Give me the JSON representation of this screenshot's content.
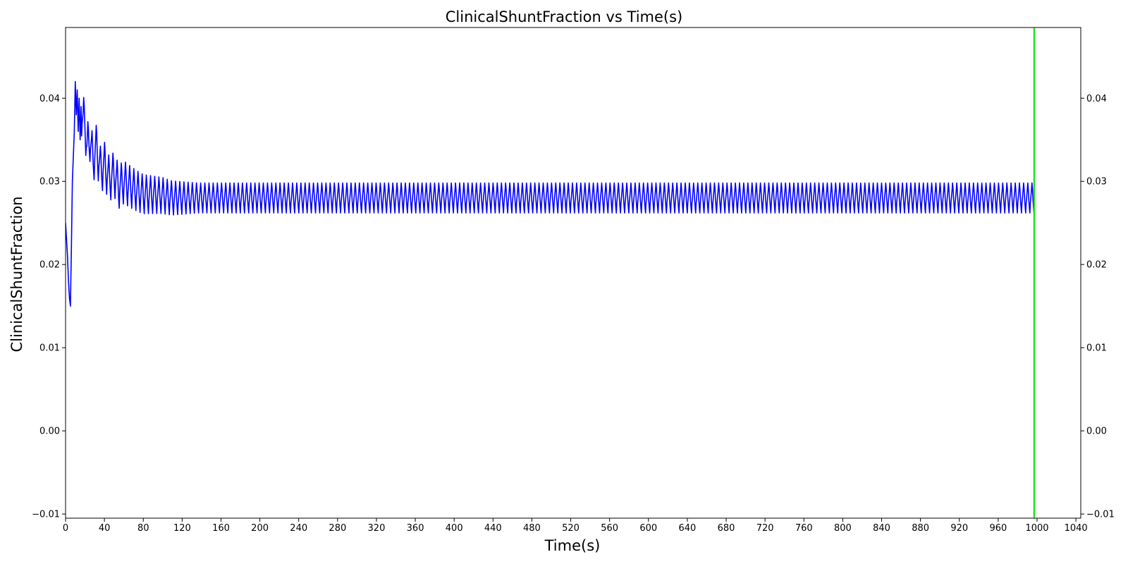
{
  "chart_data": {
    "type": "line",
    "title": "ClinicalShuntFraction vs Time(s)",
    "xlabel": "Time(s)",
    "ylabel": "ClinicalShuntFraction",
    "xlim": [
      0,
      1045
    ],
    "ylim": [
      -0.0105,
      0.0485
    ],
    "xticks": [
      0,
      40,
      80,
      120,
      160,
      200,
      240,
      280,
      320,
      360,
      400,
      440,
      480,
      520,
      560,
      600,
      640,
      680,
      720,
      760,
      800,
      840,
      880,
      920,
      960,
      1000,
      1040
    ],
    "yticks": [
      -0.01,
      0.0,
      0.01,
      0.02,
      0.03,
      0.04
    ],
    "ytick_labels": [
      "−0.01",
      "0.00",
      "0.01",
      "0.02",
      "0.03",
      "0.04"
    ],
    "grid": false,
    "right_axis_mirrored": true,
    "series": [
      {
        "color": "#0000ff",
        "description_points": {
          "x": [
            0,
            1,
            2,
            3,
            4,
            5,
            6,
            7,
            8,
            9,
            10,
            11,
            12,
            13,
            14,
            15,
            16,
            18,
            20,
            22,
            25,
            28,
            32,
            36,
            40,
            45,
            50,
            55,
            60,
            70,
            80,
            90,
            100,
            110,
            120,
            140,
            160,
            200,
            300,
            400,
            500,
            600,
            700,
            800,
            900,
            997
          ],
          "y": [
            0.025,
            0.023,
            0.021,
            0.018,
            0.016,
            0.015,
            0.022,
            0.03,
            0.033,
            0.036,
            0.042,
            0.038,
            0.041,
            0.036,
            0.04,
            0.035,
            0.039,
            0.037,
            0.038,
            0.034,
            0.036,
            0.033,
            0.035,
            0.032,
            0.033,
            0.031,
            0.032,
            0.03,
            0.031,
            0.03,
            0.029,
            0.029,
            0.029,
            0.028,
            0.028,
            0.028,
            0.028,
            0.028,
            0.028,
            0.028,
            0.028,
            0.028,
            0.028,
            0.028,
            0.028,
            0.028
          ]
        },
        "steady_oscillation": {
          "min": 0.026,
          "max": 0.03,
          "period_s": 4.3
        }
      }
    ],
    "vertical_line": {
      "x": 997,
      "color": "#00e000"
    }
  }
}
